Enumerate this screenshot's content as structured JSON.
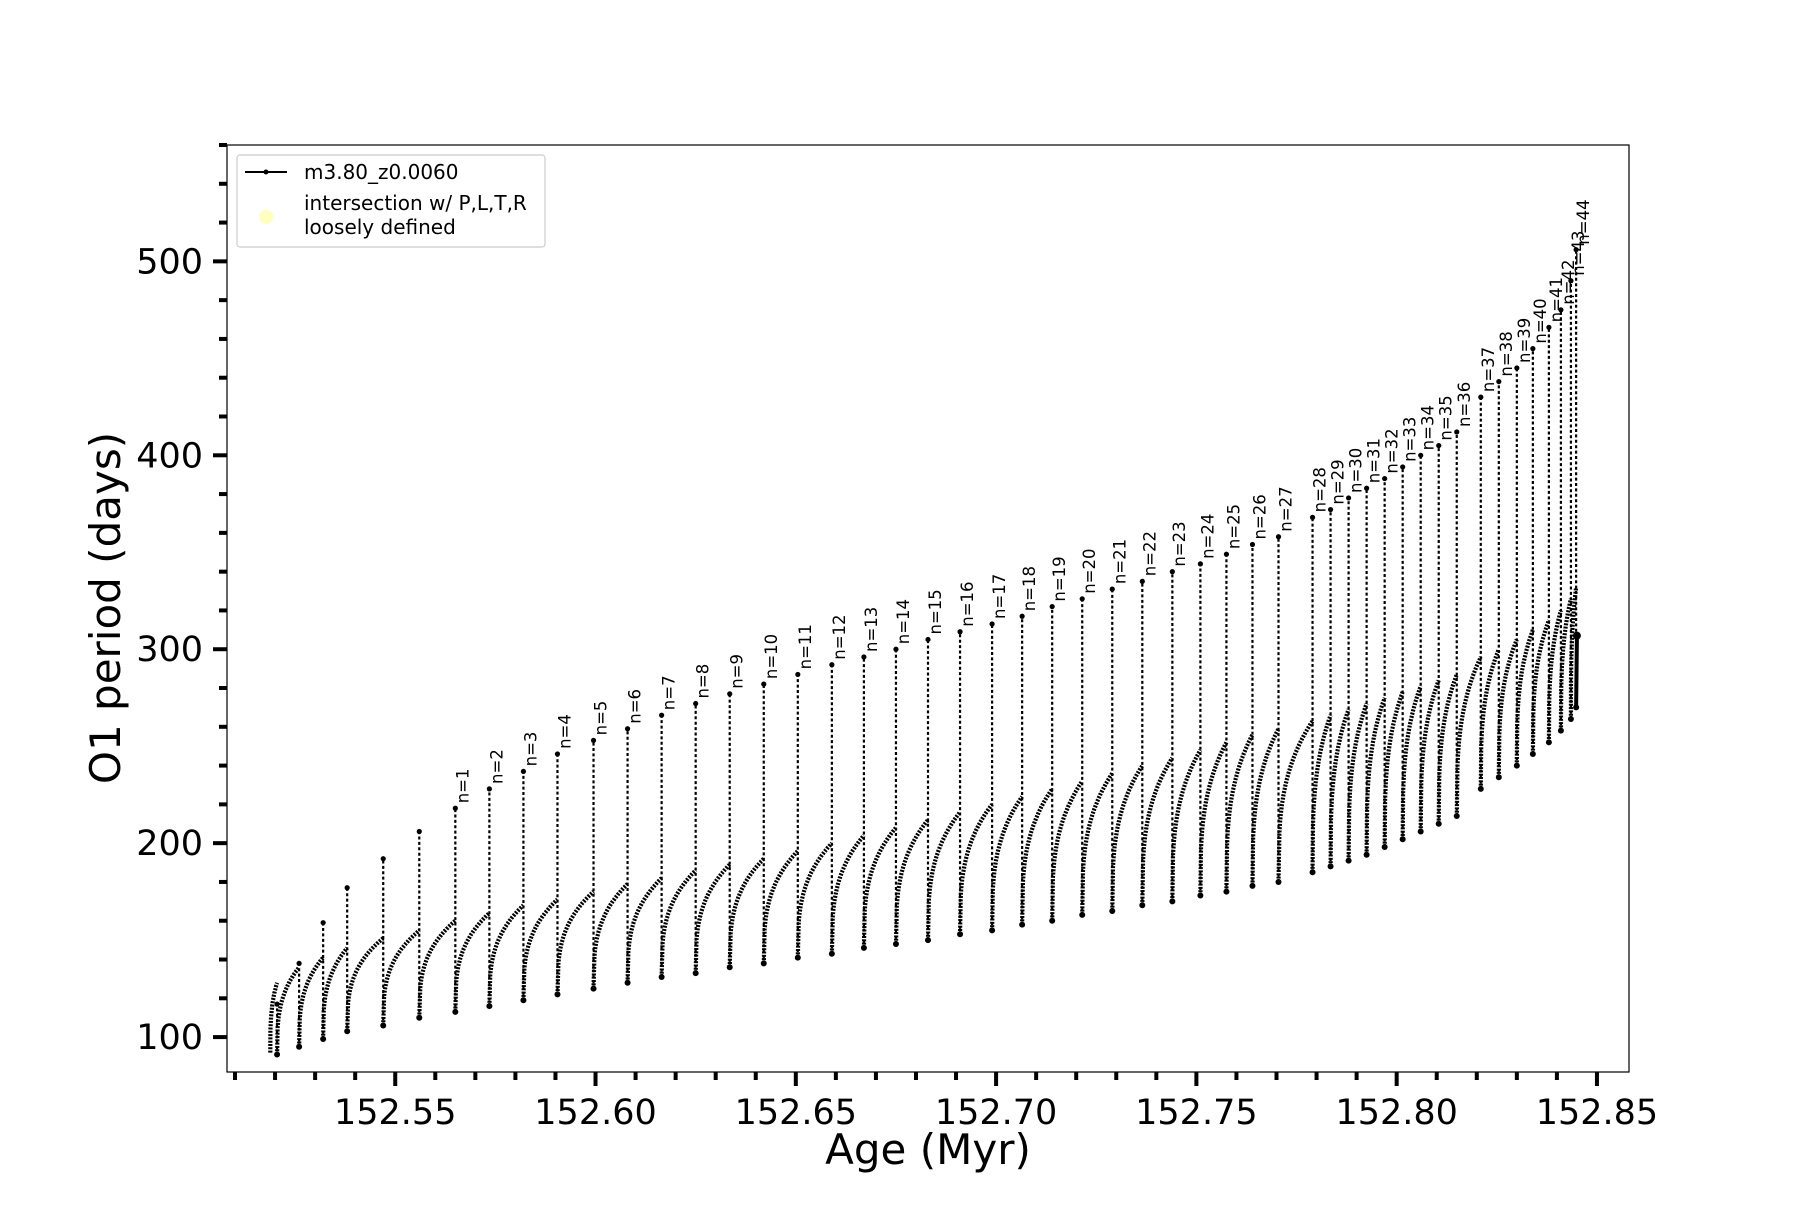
{
  "chart_data": {
    "type": "line",
    "title": "",
    "xlabel": "Age (Myr)",
    "ylabel": "O1 period (days)",
    "xlim": [
      152.508,
      152.858
    ],
    "ylim": [
      82,
      560
    ],
    "x_ticks": [
      152.55,
      152.6,
      152.65,
      152.7,
      152.75,
      152.8,
      152.85
    ],
    "x_tick_labels": [
      "152.55",
      "152.60",
      "152.65",
      "152.70",
      "152.75",
      "152.80",
      "152.85"
    ],
    "y_ticks": [
      100,
      200,
      300,
      400,
      500
    ],
    "y_tick_labels": [
      "100",
      "200",
      "300",
      "400",
      "500"
    ],
    "x_minor_step": 0.01,
    "y_minor_step": 20,
    "grid": false,
    "legend": {
      "placement": "top-left",
      "entries": [
        {
          "label": "m3.80_z0.0060",
          "marker": "line",
          "color": "#000000"
        },
        {
          "label": "intersection w/ P,L,T,R\nloosely defined",
          "marker": "circle",
          "color": "#ffffc0"
        }
      ]
    },
    "series": [
      {
        "name": "m3.80_z0.0060",
        "color": "#000000",
        "start_age": 152.5188,
        "start_period": 92,
        "end_age": 152.845,
        "end_period": 307,
        "unlabeled_pulses": [
          {
            "age": 152.5205,
            "peak": 117,
            "min": 91,
            "base": 128
          },
          {
            "age": 152.526,
            "peak": 138,
            "min": 95,
            "base": 136
          },
          {
            "age": 152.532,
            "peak": 159,
            "min": 99,
            "base": 141
          },
          {
            "age": 152.538,
            "peak": 177,
            "min": 103,
            "base": 146
          },
          {
            "age": 152.547,
            "peak": 192,
            "min": 106,
            "base": 151
          },
          {
            "age": 152.556,
            "peak": 206,
            "min": 110,
            "base": 155
          }
        ],
        "pulses": [
          {
            "n": "n=1",
            "age": 152.565,
            "peak": 218,
            "min": 113,
            "base": 160
          },
          {
            "n": "n=2",
            "age": 152.5735,
            "peak": 228,
            "min": 116,
            "base": 164
          },
          {
            "n": "n=3",
            "age": 152.582,
            "peak": 237,
            "min": 119,
            "base": 168
          },
          {
            "n": "n=4",
            "age": 152.5905,
            "peak": 246,
            "min": 122,
            "base": 171
          },
          {
            "n": "n=5",
            "age": 152.5995,
            "peak": 253,
            "min": 125,
            "base": 175
          },
          {
            "n": "n=6",
            "age": 152.608,
            "peak": 259,
            "min": 128,
            "base": 179
          },
          {
            "n": "n=7",
            "age": 152.6165,
            "peak": 266,
            "min": 131,
            "base": 182
          },
          {
            "n": "n=8",
            "age": 152.625,
            "peak": 272,
            "min": 133,
            "base": 186
          },
          {
            "n": "n=9",
            "age": 152.6335,
            "peak": 277,
            "min": 136,
            "base": 189
          },
          {
            "n": "n=10",
            "age": 152.642,
            "peak": 282,
            "min": 138,
            "base": 192
          },
          {
            "n": "n=11",
            "age": 152.6505,
            "peak": 287,
            "min": 141,
            "base": 196
          },
          {
            "n": "n=12",
            "age": 152.659,
            "peak": 292,
            "min": 143,
            "base": 200
          },
          {
            "n": "n=13",
            "age": 152.667,
            "peak": 296,
            "min": 146,
            "base": 204
          },
          {
            "n": "n=14",
            "age": 152.675,
            "peak": 300,
            "min": 148,
            "base": 208
          },
          {
            "n": "n=15",
            "age": 152.683,
            "peak": 305,
            "min": 150,
            "base": 212
          },
          {
            "n": "n=16",
            "age": 152.691,
            "peak": 309,
            "min": 153,
            "base": 216
          },
          {
            "n": "n=17",
            "age": 152.699,
            "peak": 313,
            "min": 155,
            "base": 220
          },
          {
            "n": "n=18",
            "age": 152.7065,
            "peak": 317,
            "min": 158,
            "base": 224
          },
          {
            "n": "n=19",
            "age": 152.714,
            "peak": 322,
            "min": 160,
            "base": 228
          },
          {
            "n": "n=20",
            "age": 152.7215,
            "peak": 326,
            "min": 163,
            "base": 232
          },
          {
            "n": "n=21",
            "age": 152.729,
            "peak": 331,
            "min": 165,
            "base": 236
          },
          {
            "n": "n=22",
            "age": 152.7365,
            "peak": 335,
            "min": 168,
            "base": 240
          },
          {
            "n": "n=23",
            "age": 152.744,
            "peak": 340,
            "min": 170,
            "base": 244
          },
          {
            "n": "n=24",
            "age": 152.751,
            "peak": 344,
            "min": 173,
            "base": 248
          },
          {
            "n": "n=25",
            "age": 152.7575,
            "peak": 349,
            "min": 175,
            "base": 252
          },
          {
            "n": "n=26",
            "age": 152.764,
            "peak": 354,
            "min": 178,
            "base": 256
          },
          {
            "n": "n=27",
            "age": 152.7705,
            "peak": 358,
            "min": 180,
            "base": 259
          },
          {
            "n": "n=28",
            "age": 152.779,
            "peak": 368,
            "min": 185,
            "base": 263
          },
          {
            "n": "n=29",
            "age": 152.7835,
            "peak": 372,
            "min": 188,
            "base": 266
          },
          {
            "n": "n=30",
            "age": 152.788,
            "peak": 378,
            "min": 191,
            "base": 269
          },
          {
            "n": "n=31",
            "age": 152.7925,
            "peak": 383,
            "min": 194,
            "base": 272
          },
          {
            "n": "n=32",
            "age": 152.797,
            "peak": 388,
            "min": 198,
            "base": 275
          },
          {
            "n": "n=33",
            "age": 152.8015,
            "peak": 394,
            "min": 202,
            "base": 278
          },
          {
            "n": "n=34",
            "age": 152.806,
            "peak": 400,
            "min": 206,
            "base": 281
          },
          {
            "n": "n=35",
            "age": 152.8105,
            "peak": 405,
            "min": 210,
            "base": 284
          },
          {
            "n": "n=36",
            "age": 152.815,
            "peak": 412,
            "min": 214,
            "base": 287
          },
          {
            "n": "n=37",
            "age": 152.821,
            "peak": 430,
            "min": 228,
            "base": 296
          },
          {
            "n": "n=38",
            "age": 152.8255,
            "peak": 438,
            "min": 234,
            "base": 300
          },
          {
            "n": "n=39",
            "age": 152.83,
            "peak": 445,
            "min": 240,
            "base": 305
          },
          {
            "n": "n=40",
            "age": 152.834,
            "peak": 455,
            "min": 246,
            "base": 310
          },
          {
            "n": "n=41",
            "age": 152.838,
            "peak": 466,
            "min": 252,
            "base": 315
          },
          {
            "n": "n=42",
            "age": 152.841,
            "peak": 475,
            "min": 258,
            "base": 320
          },
          {
            "n": "n=43",
            "age": 152.8435,
            "peak": 490,
            "min": 264,
            "base": 326
          },
          {
            "n": "n=44",
            "age": 152.8448,
            "peak": 506,
            "min": 270,
            "base": 332
          }
        ]
      }
    ]
  }
}
